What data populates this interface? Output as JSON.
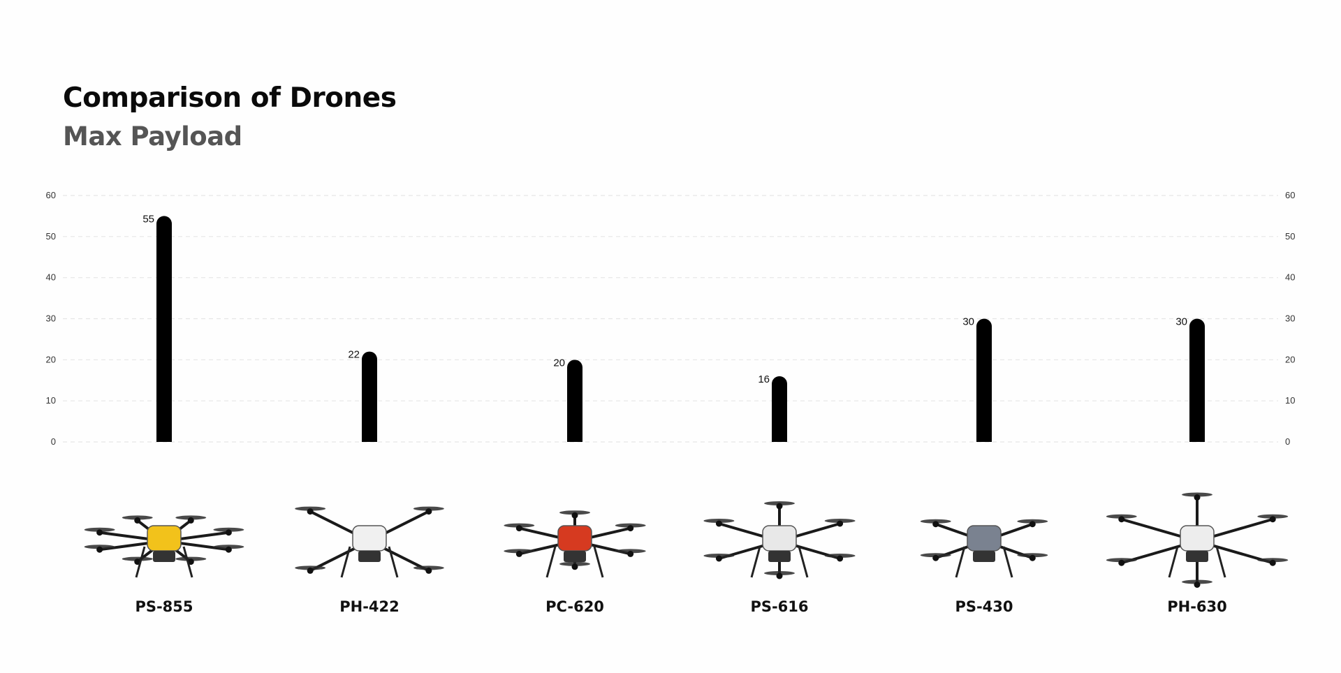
{
  "chart_data": {
    "type": "bar",
    "title": "Comparison of Drones",
    "subtitle": "Max Payload",
    "categories": [
      "PS-855",
      "PH-422",
      "PC-620",
      "PS-616",
      "PS-430",
      "PH-630"
    ],
    "values": [
      55,
      22,
      20,
      16,
      30,
      30
    ],
    "ylim": [
      0,
      60
    ],
    "yticks": [
      0,
      10,
      20,
      30,
      40,
      50,
      60
    ],
    "xlabel": "",
    "ylabel": "",
    "grid": true,
    "dual_y_axis": true,
    "bar_color": "#000000",
    "grid_color": "#e6e6e6"
  }
}
